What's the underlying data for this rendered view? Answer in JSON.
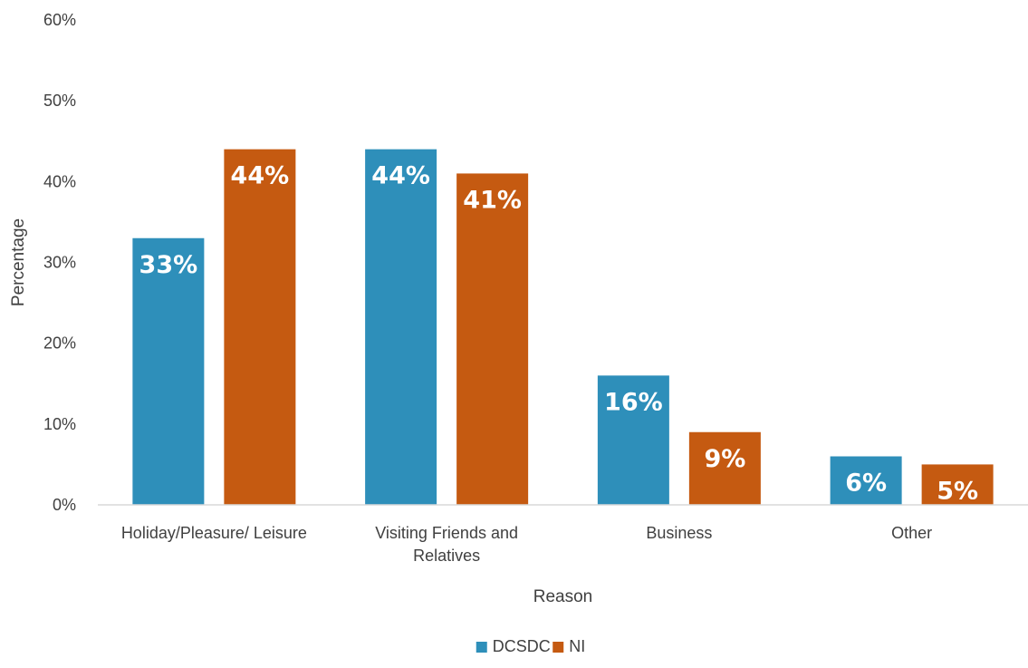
{
  "chart_data": {
    "type": "bar",
    "xlabel": "Reason",
    "ylabel": "Percentage",
    "categories": [
      [
        "Holiday/Pleasure/ Leisure"
      ],
      [
        "Visiting Friends and",
        "Relatives"
      ],
      [
        "Business"
      ],
      [
        "Other"
      ]
    ],
    "series": [
      {
        "name": "DCSDC",
        "color": "#2E8FBA",
        "values": [
          33,
          44,
          16,
          6
        ],
        "labels": [
          "33%",
          "44%",
          "16%",
          "6%"
        ]
      },
      {
        "name": "NI",
        "color": "#C55A11",
        "values": [
          44,
          41,
          9,
          5
        ],
        "labels": [
          "44%",
          "41%",
          "9%",
          "5%"
        ]
      }
    ],
    "ylim": [
      0,
      60
    ],
    "yticks": [
      {
        "value": 0,
        "label": "0%"
      },
      {
        "value": 10,
        "label": "10%"
      },
      {
        "value": 20,
        "label": "20%"
      },
      {
        "value": 30,
        "label": "30%"
      },
      {
        "value": 40,
        "label": "40%"
      },
      {
        "value": 50,
        "label": "50%"
      },
      {
        "value": 60,
        "label": "60%"
      }
    ],
    "grid": false,
    "legend": "bottom-center",
    "axis_color": "#D9D9D9"
  }
}
